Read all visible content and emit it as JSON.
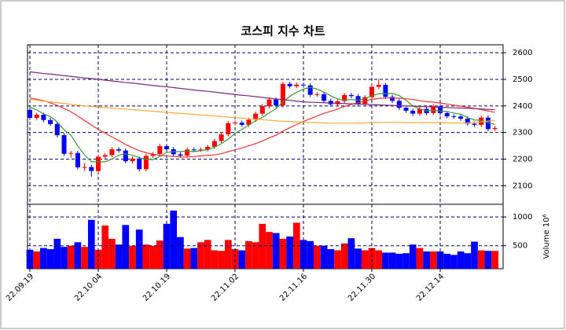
{
  "chart_data": [
    {
      "type": "candlestick",
      "title": "코스피 지수 차트",
      "categories": [
        "22.09.19",
        null,
        null,
        null,
        null,
        null,
        null,
        null,
        null,
        null,
        "22.10.04",
        null,
        null,
        null,
        null,
        null,
        null,
        null,
        null,
        null,
        "22.10.19",
        null,
        null,
        null,
        null,
        null,
        null,
        null,
        null,
        null,
        "22.11.02",
        null,
        null,
        null,
        null,
        null,
        null,
        null,
        null,
        null,
        "22.11.16",
        null,
        null,
        null,
        null,
        null,
        null,
        null,
        null,
        null,
        "22.11.30",
        null,
        null,
        null,
        null,
        null,
        null,
        null,
        null,
        null,
        "22.12.14",
        null,
        null,
        null,
        null,
        null,
        null,
        null,
        null
      ],
      "open": [
        2385,
        2355,
        2367,
        2347,
        2332,
        2290,
        2220,
        2223,
        2169,
        2170,
        2155,
        2209,
        2215,
        2237,
        2232,
        2192,
        2202,
        2162,
        2212,
        2219,
        2249,
        2237,
        2218,
        2213,
        2236,
        2235,
        2236,
        2246,
        2268,
        2293,
        2335,
        2337,
        2329,
        2348,
        2371,
        2399,
        2424,
        2402,
        2483,
        2474,
        2480,
        2477,
        2442,
        2444,
        2419,
        2406,
        2418,
        2441,
        2437,
        2408,
        2433,
        2472,
        2479,
        2434,
        2419,
        2393,
        2382,
        2371,
        2389,
        2373,
        2399,
        2373,
        2361,
        2360,
        2352,
        2333,
        2329,
        2356,
        2313
      ],
      "high": [
        2393,
        2375,
        2375,
        2355,
        2340,
        2298,
        2231,
        2231,
        2186,
        2178,
        2217,
        2223,
        2245,
        2245,
        2240,
        2210,
        2210,
        2220,
        2227,
        2257,
        2257,
        2245,
        2226,
        2244,
        2244,
        2244,
        2254,
        2276,
        2301,
        2343,
        2345,
        2345,
        2356,
        2379,
        2407,
        2432,
        2432,
        2491,
        2491,
        2488,
        2488,
        2485,
        2452,
        2452,
        2427,
        2426,
        2449,
        2449,
        2445,
        2441,
        2480,
        2501,
        2487,
        2442,
        2427,
        2401,
        2390,
        2397,
        2397,
        2407,
        2407,
        2381,
        2369,
        2368,
        2360,
        2341,
        2364,
        2364,
        2325
      ],
      "low": [
        2347,
        2347,
        2339,
        2324,
        2282,
        2212,
        2205,
        2161,
        2155,
        2134,
        2147,
        2201,
        2207,
        2224,
        2184,
        2184,
        2154,
        2154,
        2204,
        2211,
        2229,
        2210,
        2205,
        2205,
        2227,
        2227,
        2228,
        2238,
        2260,
        2285,
        2327,
        2321,
        2321,
        2340,
        2363,
        2391,
        2394,
        2394,
        2466,
        2466,
        2469,
        2434,
        2434,
        2411,
        2398,
        2398,
        2410,
        2429,
        2400,
        2400,
        2425,
        2464,
        2426,
        2411,
        2385,
        2374,
        2363,
        2363,
        2365,
        2365,
        2365,
        2353,
        2352,
        2344,
        2325,
        2321,
        2321,
        2305,
        2305
      ],
      "close": [
        2355,
        2367,
        2347,
        2332,
        2290,
        2220,
        2223,
        2169,
        2170,
        2155,
        2209,
        2215,
        2237,
        2232,
        2192,
        2202,
        2162,
        2212,
        2219,
        2249,
        2237,
        2218,
        2213,
        2236,
        2235,
        2236,
        2246,
        2268,
        2293,
        2335,
        2337,
        2329,
        2348,
        2371,
        2399,
        2424,
        2402,
        2483,
        2474,
        2480,
        2477,
        2442,
        2444,
        2419,
        2406,
        2418,
        2441,
        2437,
        2408,
        2433,
        2472,
        2479,
        2434,
        2419,
        2393,
        2382,
        2371,
        2389,
        2373,
        2399,
        2373,
        2361,
        2360,
        2352,
        2333,
        2329,
        2356,
        2313,
        2317
      ],
      "up_color": "#ff0000",
      "down_color": "#0000ff",
      "series": [
        {
          "color": "#3a9a3a",
          "values": [
            2395,
            2385,
            2370,
            2360,
            2340,
            2310,
            2290,
            2250,
            2215,
            2190,
            2190,
            2190,
            2200,
            2215,
            2220,
            2215,
            2205,
            2200,
            2198,
            2210,
            2225,
            2228,
            2228,
            2230,
            2228,
            2232,
            2235,
            2245,
            2258,
            2275,
            2297,
            2312,
            2328,
            2344,
            2357,
            2374,
            2390,
            2415,
            2436,
            2452,
            2463,
            2470,
            2463,
            2452,
            2438,
            2426,
            2422,
            2424,
            2422,
            2427,
            2438,
            2446,
            2446,
            2447,
            2439,
            2421,
            2400,
            2389,
            2382,
            2383,
            2381,
            2379,
            2373,
            2369,
            2356,
            2347,
            2346,
            2337,
            2330
          ]
        },
        {
          "color": "#ee3333",
          "values": [
            2430,
            2425,
            2420,
            2412,
            2402,
            2390,
            2378,
            2362,
            2345,
            2328,
            2312,
            2298,
            2283,
            2270,
            2255,
            2243,
            2232,
            2224,
            2218,
            2214,
            2212,
            2210,
            2208,
            2208,
            2209,
            2212,
            2214,
            2216,
            2220,
            2228,
            2235,
            2242,
            2250,
            2258,
            2268,
            2280,
            2290,
            2305,
            2318,
            2330,
            2342,
            2352,
            2362,
            2372,
            2380,
            2388,
            2398,
            2406,
            2412,
            2418,
            2425,
            2428,
            2430,
            2430,
            2429,
            2427,
            2424,
            2420,
            2416,
            2414,
            2411,
            2407,
            2403,
            2399,
            2395,
            2391,
            2386,
            2381,
            2376
          ]
        },
        {
          "color": "#ffaa33",
          "values": [
            2426,
            2422,
            2418,
            2415,
            2412,
            2409,
            2406,
            2403,
            2400,
            2398,
            2396,
            2394,
            2392,
            2390,
            2388,
            2386,
            2384,
            2382,
            2380,
            2378,
            2376,
            2374,
            2372,
            2370,
            2368,
            2366,
            2364,
            2362,
            2360,
            2358,
            2356,
            2354,
            2352,
            2350,
            2348,
            2346,
            2344,
            2342,
            2341,
            2340,
            2339,
            2338,
            2337,
            2336,
            2335,
            2335,
            2335,
            2335,
            2336,
            2336,
            2337,
            2338,
            2338,
            2338,
            2338,
            2337,
            2337,
            2337,
            2337,
            2337,
            2337,
            2336,
            2336,
            2336,
            2336,
            2337,
            2340,
            2343,
            2346
          ]
        },
        {
          "color": "#7a2a7a",
          "values": [
            2528,
            2525,
            2522,
            2520,
            2517,
            2514,
            2511,
            2508,
            2505,
            2503,
            2500,
            2497,
            2494,
            2491,
            2488,
            2486,
            2483,
            2480,
            2477,
            2474,
            2472,
            2469,
            2466,
            2463,
            2460,
            2457,
            2455,
            2452,
            2449,
            2446,
            2443,
            2440,
            2438,
            2435,
            2432,
            2429,
            2426,
            2423,
            2421,
            2418,
            2415,
            2414,
            2413,
            2412,
            2411,
            2410,
            2409,
            2408,
            2407,
            2406,
            2405,
            2404,
            2403,
            2402,
            2401,
            2400,
            2399,
            2398,
            2397,
            2396,
            2395,
            2394,
            2393,
            2392,
            2391,
            2390,
            2389,
            2387,
            2386
          ]
        }
      ],
      "ylim": [
        2030,
        2630
      ],
      "yticks": [
        2100,
        2200,
        2300,
        2400,
        2500,
        2600
      ],
      "grid": true
    },
    {
      "type": "bar",
      "ylabel": "Volume 10⁶",
      "values": [
        430,
        400,
        460,
        440,
        620,
        480,
        500,
        560,
        480,
        950,
        430,
        850,
        620,
        520,
        860,
        500,
        780,
        520,
        500,
        590,
        880,
        1110,
        650,
        450,
        460,
        560,
        600,
        420,
        410,
        600,
        440,
        420,
        580,
        560,
        880,
        740,
        720,
        620,
        660,
        900,
        600,
        580,
        500,
        500,
        440,
        420,
        540,
        630,
        450,
        420,
        460,
        420,
        380,
        380,
        360,
        370,
        520,
        460,
        400,
        400,
        400,
        360,
        340,
        400,
        370,
        570,
        420,
        410,
        410
      ],
      "ylim": [
        100,
        1220
      ],
      "yticks": [
        500,
        1000
      ],
      "grid": true
    }
  ]
}
